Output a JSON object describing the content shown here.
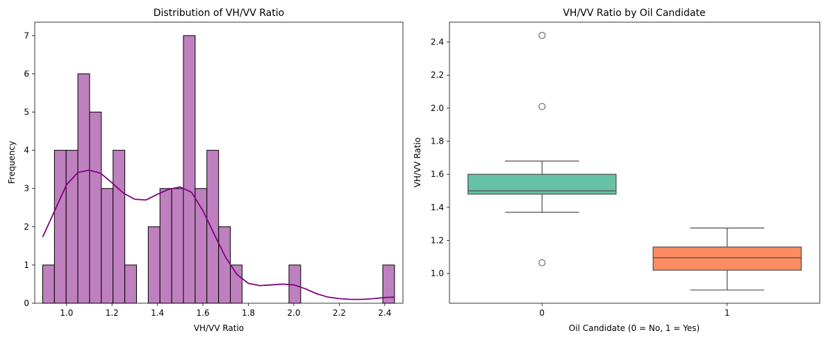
{
  "colors": {
    "hist_fill": "#bf80bf",
    "hist_edge": "#000000",
    "kde": "#800080",
    "box_0": "#66c2a5",
    "box_1": "#fc8d62",
    "box_line": "#4d4d4d"
  },
  "chart_data": [
    {
      "type": "histogram",
      "title": "Distribution of VH/VV Ratio",
      "xlabel": "VH/VV Ratio",
      "ylabel": "Frequency",
      "xlim": [
        0.86,
        2.48
      ],
      "ylim": [
        0,
        7.35
      ],
      "xticks": [
        1.0,
        1.2,
        1.4,
        1.6,
        1.8,
        2.0,
        2.2,
        2.4
      ],
      "xtick_labels": [
        "1.0",
        "1.2",
        "1.4",
        "1.6",
        "1.8",
        "2.0",
        "2.2",
        "2.4"
      ],
      "yticks": [
        0,
        1,
        2,
        3,
        4,
        5,
        6,
        7
      ],
      "ytick_labels": [
        "0",
        "1",
        "2",
        "3",
        "4",
        "5",
        "6",
        "7"
      ],
      "bin_start": 0.895,
      "bin_width": 0.0516,
      "counts": [
        1,
        4,
        4,
        6,
        5,
        3,
        4,
        1,
        0,
        2,
        3,
        3,
        7,
        3,
        4,
        2,
        1,
        0,
        0,
        0,
        0,
        1,
        0,
        0,
        0,
        0,
        0,
        0,
        0,
        1
      ],
      "kde": {
        "x": [
          0.895,
          0.95,
          1.0,
          1.05,
          1.1,
          1.15,
          1.2,
          1.25,
          1.3,
          1.35,
          1.4,
          1.45,
          1.5,
          1.55,
          1.6,
          1.65,
          1.7,
          1.75,
          1.8,
          1.85,
          1.9,
          1.95,
          2.0,
          2.05,
          2.1,
          2.15,
          2.2,
          2.25,
          2.3,
          2.35,
          2.4,
          2.445
        ],
        "y": [
          1.73,
          2.45,
          3.1,
          3.42,
          3.48,
          3.4,
          3.15,
          2.88,
          2.72,
          2.7,
          2.85,
          2.98,
          3.04,
          2.9,
          2.42,
          1.8,
          1.2,
          0.75,
          0.52,
          0.46,
          0.48,
          0.5,
          0.48,
          0.38,
          0.25,
          0.16,
          0.12,
          0.1,
          0.1,
          0.12,
          0.15,
          0.16
        ]
      }
    },
    {
      "type": "box",
      "title": "VH/VV Ratio by Oil Candidate",
      "xlabel": "Oil Candidate (0 = No, 1 = Yes)",
      "ylabel": "VH/VV Ratio",
      "categories": [
        "0",
        "1"
      ],
      "ylim": [
        0.82,
        2.52
      ],
      "yticks": [
        1.0,
        1.2,
        1.4,
        1.6,
        1.8,
        2.0,
        2.2,
        2.4
      ],
      "ytick_labels": [
        "1.0",
        "1.2",
        "1.4",
        "1.6",
        "1.8",
        "2.0",
        "2.2",
        "2.4"
      ],
      "boxes": [
        {
          "category": "0",
          "whisker_low": 1.37,
          "q1": 1.48,
          "median": 1.5,
          "q3": 1.6,
          "whisker_high": 1.68,
          "outliers": [
            2.44,
            2.01,
            1.065
          ]
        },
        {
          "category": "1",
          "whisker_low": 0.9,
          "q1": 1.02,
          "median": 1.095,
          "q3": 1.16,
          "whisker_high": 1.275,
          "outliers": []
        }
      ]
    }
  ]
}
